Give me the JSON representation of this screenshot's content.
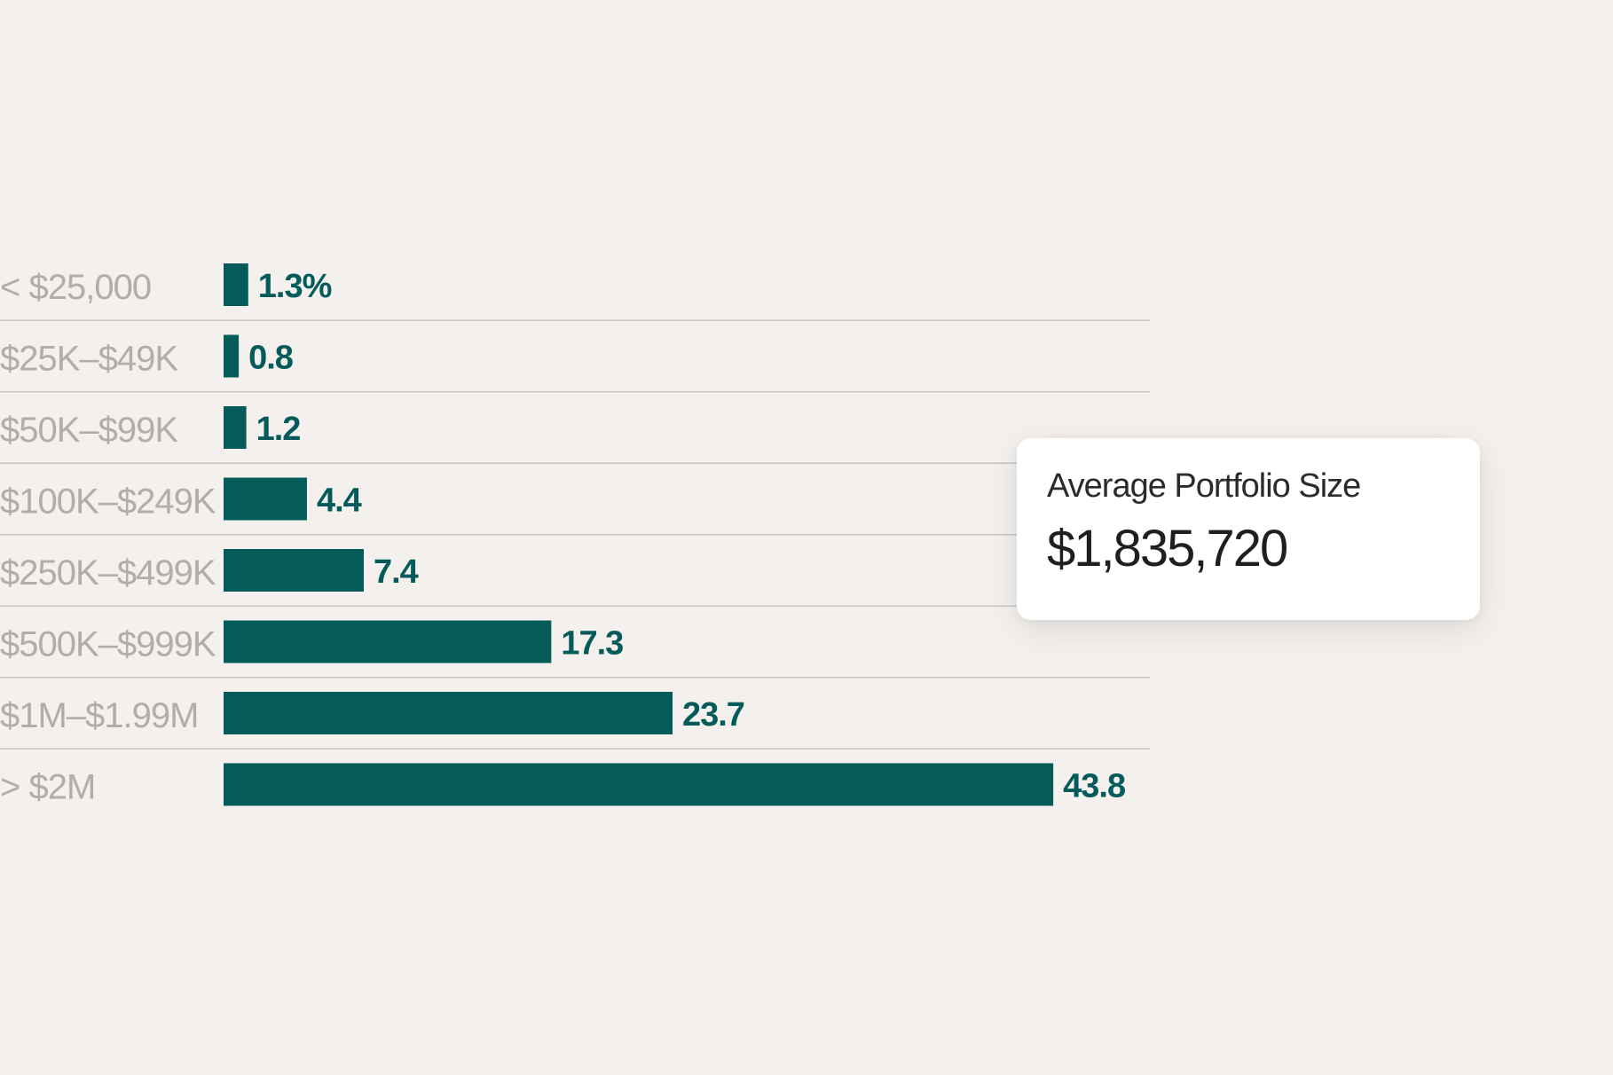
{
  "chart_data": {
    "type": "bar",
    "orientation": "horizontal",
    "categories": [
      "< $25,000",
      "$25K–$49K",
      "$50K–$99K",
      "$100K–$249K",
      "$250K–$499K",
      "$500K–$999K",
      "$1M–$1.99M",
      "> $2M"
    ],
    "values": [
      1.3,
      0.8,
      1.2,
      4.4,
      7.4,
      17.3,
      23.7,
      43.8
    ],
    "value_labels": [
      "1.3%",
      "0.8",
      "1.2",
      "4.4",
      "7.4",
      "17.3",
      "23.7",
      "43.8"
    ],
    "title": "",
    "xlabel": "",
    "ylabel": "",
    "grid": false,
    "row_separators": true,
    "bar_color": "#045b5a",
    "label_color": "#b0adaa",
    "background_color": "#f3f0ed"
  },
  "callout": {
    "title": "Average Portfolio Size",
    "value": "$1,835,720"
  }
}
